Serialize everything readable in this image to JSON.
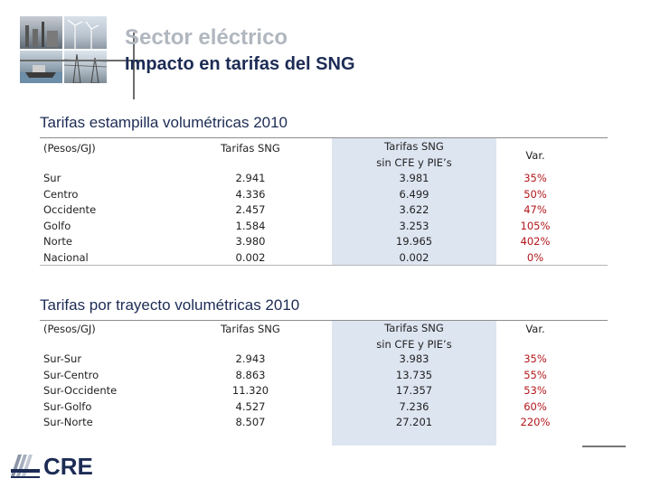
{
  "header": {
    "title": "Sector eléctrico",
    "subtitle": "Impacto en tarifas del SNG"
  },
  "section1": {
    "title": "Tarifas estampilla volumétricas 2010",
    "col_label": "(Pesos/GJ)",
    "col_tarifas": "Tarifas SNG",
    "col_sin_1": "Tarifas SNG",
    "col_sin_2": "sin CFE y PIE’s",
    "col_var": "Var.",
    "rows": [
      {
        "region": "Sur",
        "tarifa": "2.941",
        "sin": "3.981",
        "var": "35%"
      },
      {
        "region": "Centro",
        "tarifa": "4.336",
        "sin": "6.499",
        "var": "50%"
      },
      {
        "region": "Occidente",
        "tarifa": "2.457",
        "sin": "3.622",
        "var": "47%"
      },
      {
        "region": "Golfo",
        "tarifa": "1.584",
        "sin": "3.253",
        "var": "105%"
      },
      {
        "region": "Norte",
        "tarifa": "3.980",
        "sin": "19.965",
        "var": "402%"
      },
      {
        "region": "Nacional",
        "tarifa": "0.002",
        "sin": "0.002",
        "var": "0%"
      }
    ]
  },
  "section2": {
    "title": "Tarifas por trayecto volumétricas 2010",
    "col_label": "(Pesos/GJ)",
    "col_tarifas": "Tarifas SNG",
    "col_sin_1": "Tarifas SNG",
    "col_sin_2": "sin CFE y PIE’s",
    "col_var": "Var.",
    "rows": [
      {
        "region": "Sur-Sur",
        "tarifa": "2.943",
        "sin": "3.983",
        "var": "35%"
      },
      {
        "region": "Sur-Centro",
        "tarifa": "8.863",
        "sin": "13.735",
        "var": "55%"
      },
      {
        "region": "Sur-Occidente",
        "tarifa": "11.320",
        "sin": "17.357",
        "var": "53%"
      },
      {
        "region": "Sur-Golfo",
        "tarifa": "4.527",
        "sin": "7.236",
        "var": "60%"
      },
      {
        "region": "Sur-Norte",
        "tarifa": "8.507",
        "sin": "27.201",
        "var": "220%"
      }
    ]
  },
  "logo": {
    "text": "CRE",
    "color": "#1d2c55"
  }
}
